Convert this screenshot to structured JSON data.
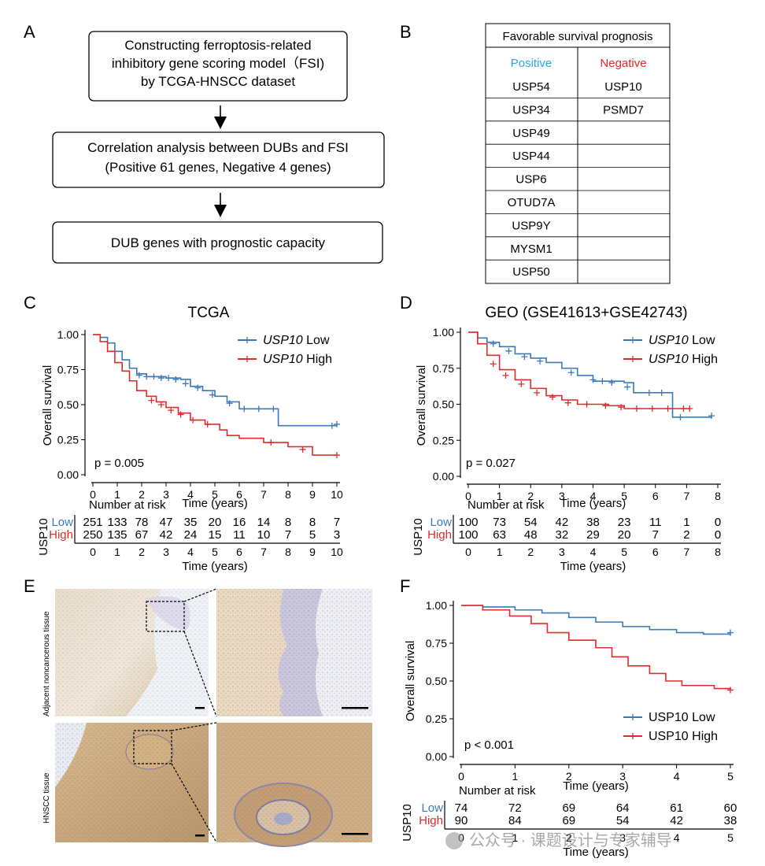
{
  "panels": {
    "A": "A",
    "B": "B",
    "C": "C",
    "D": "D",
    "E": "E",
    "F": "F"
  },
  "flow": {
    "box1": [
      "Constructing ferroptosis-related",
      "inhibitory gene scoring model（FSI)",
      "by TCGA-HNSCC dataset"
    ],
    "box2": [
      "Correlation analysis between DUBs and FSI",
      "(Positive 61 genes, Negative 4 genes)"
    ],
    "box3": [
      "DUB genes with prognostic capacity"
    ]
  },
  "table": {
    "title": "Favorable survival prognosis",
    "positive_header": "Positive",
    "negative_header": "Negative",
    "positive": [
      "USP54",
      "USP34",
      "USP49",
      "USP44",
      "USP6",
      "OTUD7A",
      "USP9Y",
      "MYSM1",
      "USP50"
    ],
    "negative": [
      "USP10",
      "PSMD7",
      "",
      "",
      "",
      "",
      "",
      "",
      ""
    ]
  },
  "colors": {
    "low": "#3a7ab6",
    "high": "#e02b2b",
    "positive": "#2aa7e0",
    "negative": "#e02b2b"
  },
  "histology": {
    "label_top": "Adjacent noncancerous tissue",
    "label_bottom": "HNSCC tissue"
  },
  "watermark": "公众号 · 课题设计与专家辅导",
  "chart_data": [
    {
      "panel": "C",
      "type": "line",
      "title": "TCGA",
      "xlabel": "Time (years)",
      "ylabel": "Overall survival",
      "xlim": [
        0,
        10
      ],
      "ylim": [
        0,
        1
      ],
      "xticks": [
        "0",
        "1",
        "2",
        "3",
        "4",
        "5",
        "6",
        "7",
        "8",
        "9",
        "10"
      ],
      "yticks": [
        "0.00",
        "0.25",
        "0.50",
        "0.75",
        "1.00"
      ],
      "pvalue": "p = 0.005",
      "legend": [
        {
          "gene": "USP10",
          "group": " Low"
        },
        {
          "gene": "USP10",
          "group": " High"
        }
      ],
      "series": [
        {
          "name": "USP10 Low",
          "color": "low",
          "points": [
            [
              0,
              1
            ],
            [
              0.3,
              0.98
            ],
            [
              0.6,
              0.94
            ],
            [
              0.9,
              0.88
            ],
            [
              1.2,
              0.82
            ],
            [
              1.5,
              0.76
            ],
            [
              1.8,
              0.72
            ],
            [
              2.2,
              0.7
            ],
            [
              3,
              0.69
            ],
            [
              3.6,
              0.68
            ],
            [
              4,
              0.63
            ],
            [
              4.5,
              0.6
            ],
            [
              5,
              0.56
            ],
            [
              5.5,
              0.52
            ],
            [
              6,
              0.47
            ],
            [
              7.5,
              0.47
            ],
            [
              7.6,
              0.35
            ],
            [
              10,
              0.35
            ]
          ],
          "censors": [
            [
              1.9,
              0.71
            ],
            [
              2.2,
              0.7
            ],
            [
              2.5,
              0.7
            ],
            [
              2.8,
              0.69
            ],
            [
              3.1,
              0.69
            ],
            [
              3.4,
              0.68
            ],
            [
              3.8,
              0.65
            ],
            [
              4.3,
              0.62
            ],
            [
              4.9,
              0.57
            ],
            [
              5.6,
              0.51
            ],
            [
              6.2,
              0.47
            ],
            [
              6.8,
              0.47
            ],
            [
              7.4,
              0.47
            ],
            [
              9.8,
              0.35
            ],
            [
              10,
              0.36
            ]
          ]
        },
        {
          "name": "USP10 High",
          "color": "high",
          "points": [
            [
              0,
              1
            ],
            [
              0.3,
              0.95
            ],
            [
              0.6,
              0.88
            ],
            [
              0.9,
              0.8
            ],
            [
              1.2,
              0.74
            ],
            [
              1.5,
              0.67
            ],
            [
              1.8,
              0.6
            ],
            [
              2.2,
              0.56
            ],
            [
              2.6,
              0.52
            ],
            [
              3,
              0.48
            ],
            [
              3.5,
              0.44
            ],
            [
              4,
              0.39
            ],
            [
              4.6,
              0.36
            ],
            [
              5.2,
              0.32
            ],
            [
              5.5,
              0.28
            ],
            [
              6,
              0.26
            ],
            [
              7,
              0.23
            ],
            [
              8,
              0.2
            ],
            [
              9,
              0.14
            ],
            [
              10,
              0.14
            ]
          ],
          "censors": [
            [
              2.4,
              0.53
            ],
            [
              2.8,
              0.5
            ],
            [
              3.2,
              0.46
            ],
            [
              3.6,
              0.43
            ],
            [
              4.1,
              0.39
            ],
            [
              4.7,
              0.36
            ],
            [
              7.3,
              0.23
            ],
            [
              8.6,
              0.18
            ],
            [
              10,
              0.14
            ]
          ]
        }
      ],
      "risk_table": {
        "title": "Number at risk",
        "stratum": "USP10",
        "rows": [
          {
            "label": "Low",
            "color": "low",
            "values": [
              "251",
              "133",
              "78",
              "47",
              "35",
              "20",
              "16",
              "14",
              "8",
              "8",
              "7"
            ]
          },
          {
            "label": "High",
            "color": "high",
            "values": [
              "250",
              "135",
              "67",
              "42",
              "24",
              "15",
              "11",
              "10",
              "7",
              "5",
              "3"
            ]
          }
        ]
      }
    },
    {
      "panel": "D",
      "type": "line",
      "title": "GEO (GSE41613+GSE42743)",
      "xlabel": "Time (years)",
      "ylabel": "Overall survival",
      "xlim": [
        0,
        8
      ],
      "ylim": [
        0,
        1
      ],
      "xticks": [
        "0",
        "1",
        "2",
        "3",
        "4",
        "5",
        "6",
        "7",
        "8"
      ],
      "yticks": [
        "0.00",
        "0.25",
        "0.50",
        "0.75",
        "1.00"
      ],
      "pvalue": "p = 0.027",
      "legend": [
        {
          "gene": "USP10",
          "group": " Low"
        },
        {
          "gene": "USP10",
          "group": " High"
        }
      ],
      "series": [
        {
          "name": "USP10 Low",
          "color": "low",
          "points": [
            [
              0,
              1
            ],
            [
              0.3,
              0.96
            ],
            [
              0.6,
              0.93
            ],
            [
              1,
              0.9
            ],
            [
              1.5,
              0.85
            ],
            [
              2,
              0.82
            ],
            [
              2.5,
              0.79
            ],
            [
              3,
              0.75
            ],
            [
              3.5,
              0.7
            ],
            [
              4,
              0.66
            ],
            [
              5,
              0.65
            ],
            [
              5.3,
              0.58
            ],
            [
              6.5,
              0.58
            ],
            [
              6.55,
              0.41
            ],
            [
              7.8,
              0.42
            ]
          ],
          "censors": [
            [
              0.8,
              0.92
            ],
            [
              1.3,
              0.87
            ],
            [
              1.8,
              0.83
            ],
            [
              2.3,
              0.8
            ],
            [
              3.3,
              0.72
            ],
            [
              4,
              0.67
            ],
            [
              4.3,
              0.66
            ],
            [
              4.6,
              0.65
            ],
            [
              5.1,
              0.62
            ],
            [
              5.8,
              0.58
            ],
            [
              6.2,
              0.58
            ],
            [
              6.8,
              0.41
            ],
            [
              7.8,
              0.42
            ]
          ]
        },
        {
          "name": "USP10 High",
          "color": "high",
          "points": [
            [
              0,
              1
            ],
            [
              0.3,
              0.92
            ],
            [
              0.6,
              0.84
            ],
            [
              1,
              0.74
            ],
            [
              1.5,
              0.67
            ],
            [
              2,
              0.61
            ],
            [
              2.5,
              0.56
            ],
            [
              3,
              0.53
            ],
            [
              3.5,
              0.5
            ],
            [
              4.5,
              0.49
            ],
            [
              5,
              0.47
            ],
            [
              7.1,
              0.47
            ]
          ],
          "censors": [
            [
              0.8,
              0.78
            ],
            [
              1.2,
              0.7
            ],
            [
              1.7,
              0.64
            ],
            [
              2.2,
              0.58
            ],
            [
              2.7,
              0.55
            ],
            [
              3.2,
              0.51
            ],
            [
              3.8,
              0.5
            ],
            [
              4.4,
              0.49
            ],
            [
              4.9,
              0.48
            ],
            [
              5.4,
              0.47
            ],
            [
              5.9,
              0.47
            ],
            [
              6.4,
              0.47
            ],
            [
              6.9,
              0.47
            ],
            [
              7.1,
              0.47
            ]
          ]
        }
      ],
      "risk_table": {
        "title": "Number at risk",
        "stratum": "USP10",
        "rows": [
          {
            "label": "Low",
            "color": "low",
            "values": [
              "100",
              "73",
              "54",
              "42",
              "38",
              "23",
              "11",
              "1",
              "0"
            ]
          },
          {
            "label": "High",
            "color": "high",
            "values": [
              "100",
              "63",
              "48",
              "32",
              "29",
              "20",
              "7",
              "2",
              "0"
            ]
          }
        ]
      }
    },
    {
      "panel": "F",
      "type": "line",
      "title": "",
      "xlabel": "Time (years)",
      "ylabel": "Overall survival",
      "xlim": [
        0,
        5
      ],
      "ylim": [
        0,
        1
      ],
      "xticks": [
        "0",
        "1",
        "2",
        "3",
        "4",
        "5"
      ],
      "yticks": [
        "0.00",
        "0.25",
        "0.50",
        "0.75",
        "1.00"
      ],
      "pvalue": "p < 0.001",
      "legend": [
        {
          "gene": "",
          "group": "USP10 Low"
        },
        {
          "gene": "",
          "group": "USP10 High"
        }
      ],
      "series": [
        {
          "name": "USP10 Low",
          "color": "low",
          "points": [
            [
              0,
              1
            ],
            [
              0.4,
              0.99
            ],
            [
              1,
              0.97
            ],
            [
              1.5,
              0.95
            ],
            [
              2,
              0.92
            ],
            [
              2.5,
              0.89
            ],
            [
              3,
              0.86
            ],
            [
              3.5,
              0.84
            ],
            [
              4,
              0.82
            ],
            [
              4.5,
              0.81
            ],
            [
              5,
              0.82
            ]
          ],
          "censors": [
            [
              5,
              0.82
            ]
          ]
        },
        {
          "name": "USP10 High",
          "color": "high",
          "points": [
            [
              0,
              1
            ],
            [
              0.4,
              0.97
            ],
            [
              0.9,
              0.93
            ],
            [
              1.3,
              0.88
            ],
            [
              1.6,
              0.82
            ],
            [
              2,
              0.77
            ],
            [
              2.5,
              0.72
            ],
            [
              2.8,
              0.66
            ],
            [
              3.1,
              0.6
            ],
            [
              3.5,
              0.55
            ],
            [
              3.8,
              0.5
            ],
            [
              4.1,
              0.47
            ],
            [
              4.7,
              0.45
            ],
            [
              5,
              0.44
            ]
          ],
          "censors": [
            [
              5,
              0.44
            ]
          ]
        }
      ],
      "risk_table": {
        "title": "Number at risk",
        "stratum": "USP10",
        "rows": [
          {
            "label": "Low",
            "color": "low",
            "values": [
              "74",
              "72",
              "69",
              "64",
              "61",
              "60"
            ]
          },
          {
            "label": "High",
            "color": "high",
            "values": [
              "90",
              "84",
              "69",
              "54",
              "42",
              "38"
            ]
          }
        ]
      }
    }
  ]
}
